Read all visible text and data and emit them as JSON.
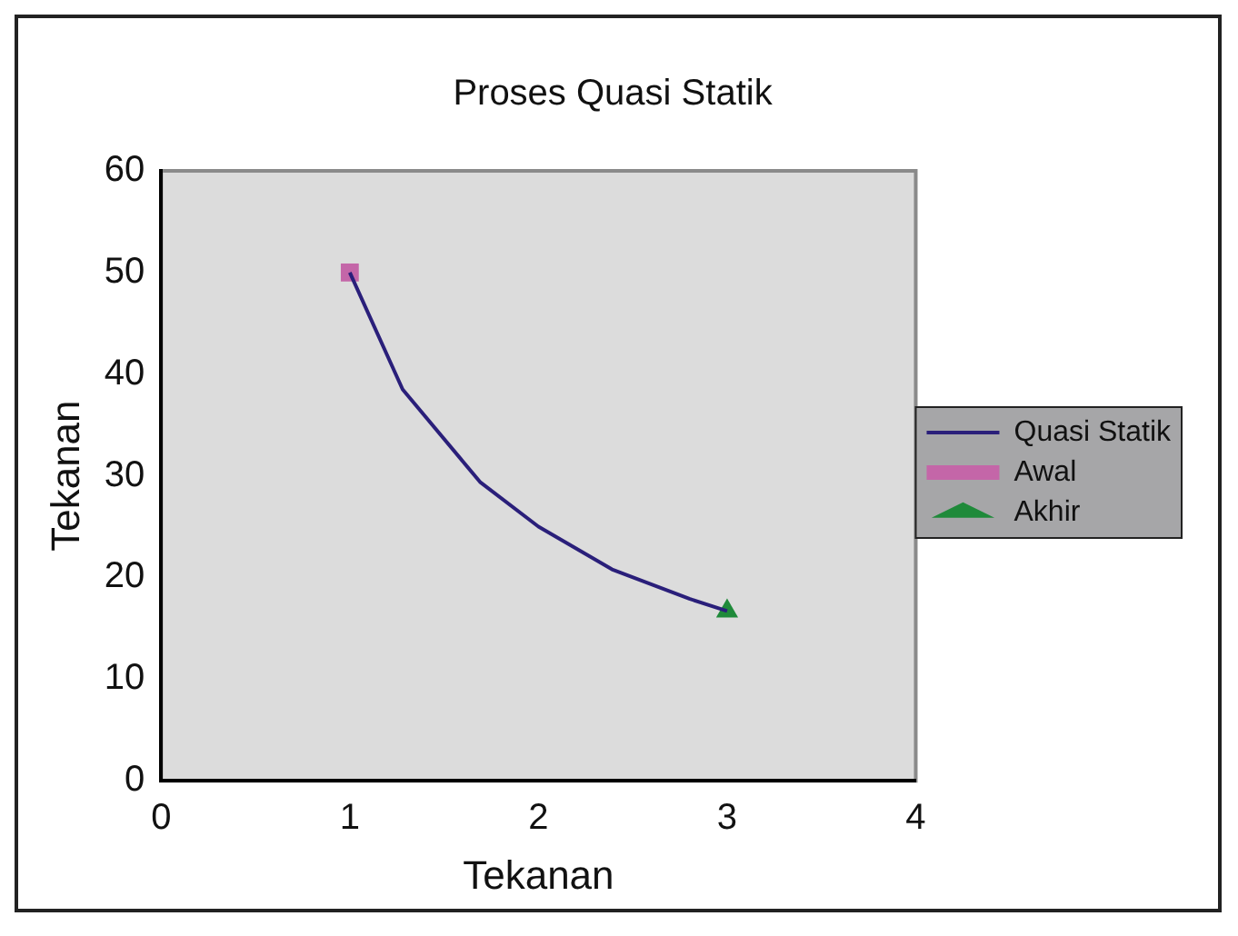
{
  "chart_data": {
    "type": "line",
    "title": "Proses Quasi Statik",
    "xlabel": "Tekanan",
    "ylabel": "Tekanan",
    "xlim": [
      0,
      4
    ],
    "xticks": [
      0,
      1,
      2,
      3,
      4
    ],
    "ylim": [
      0,
      60
    ],
    "yticks": [
      0,
      10,
      20,
      30,
      40,
      50,
      60
    ],
    "grid": false,
    "legend": "right",
    "series": [
      {
        "name": "Quasi Statik",
        "type": "line",
        "color": "#2a1f7a",
        "marker": "none",
        "x": [
          1,
          1.28,
          1.69,
          2,
          2.39,
          2.8,
          3
        ],
        "values": [
          50,
          38.5,
          29.4,
          25,
          20.8,
          17.9,
          16.7
        ]
      },
      {
        "name": "Awal",
        "type": "scatter",
        "color": "#c466a8",
        "marker": "square",
        "x": [
          1
        ],
        "values": [
          50
        ]
      },
      {
        "name": "Akhir",
        "type": "scatter",
        "color": "#1f8a3a",
        "marker": "triangle",
        "x": [
          3
        ],
        "values": [
          16.7
        ]
      }
    ]
  }
}
